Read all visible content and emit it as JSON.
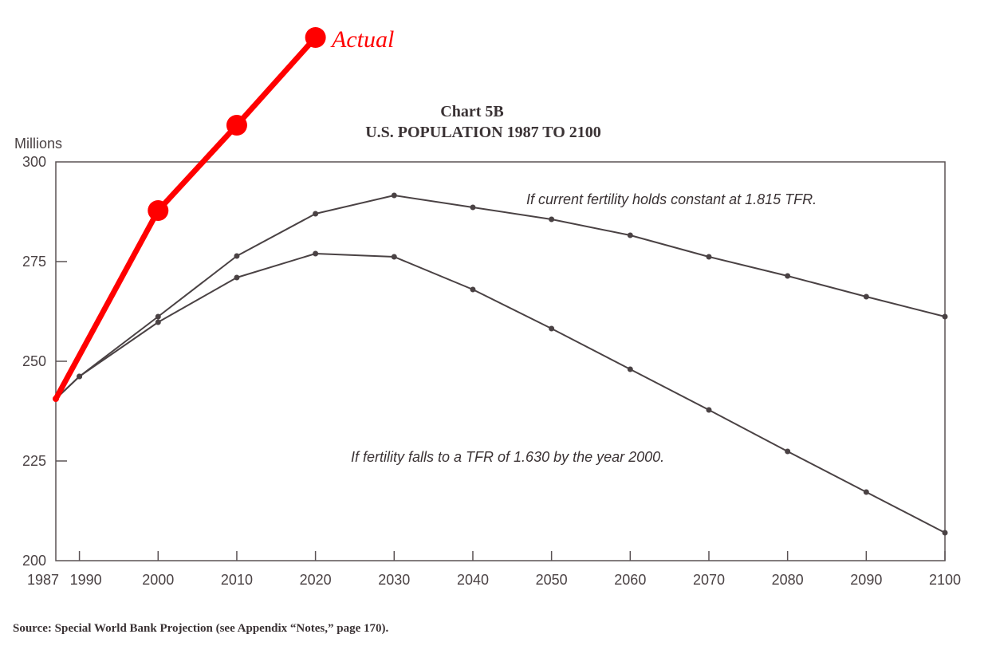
{
  "chart_data": {
    "type": "line",
    "title": "Chart 5B",
    "subtitle": "U.S. POPULATION 1987 TO 2100",
    "ylabel": "Millions",
    "xlabel": "",
    "ylim": [
      200,
      300
    ],
    "xlim": [
      1987,
      2100
    ],
    "y_ticks": [
      200,
      225,
      250,
      275,
      300
    ],
    "x_ticks": [
      1987,
      1990,
      2000,
      2010,
      2020,
      2030,
      2040,
      2050,
      2060,
      2070,
      2080,
      2090,
      2100
    ],
    "x_tick_labels": [
      "1987",
      "1990",
      "2000",
      "2010",
      "2020",
      "2030",
      "2040",
      "2050",
      "2060",
      "2070",
      "2080",
      "2090",
      "2100"
    ],
    "y_tick_labels": [
      "200",
      "225",
      "250",
      "275",
      "300"
    ],
    "grid": false,
    "series": [
      {
        "name": "If current fertility holds constant at 1.815 TFR.",
        "color": "#4a4244",
        "x": [
          1987,
          1990,
          2000,
          2010,
          2020,
          2030,
          2040,
          2050,
          2060,
          2070,
          2080,
          2090,
          2100
        ],
        "values": [
          240.6,
          246.2,
          261.2,
          276.4,
          287.0,
          291.6,
          288.6,
          285.6,
          281.6,
          276.2,
          271.4,
          266.2,
          261.2
        ]
      },
      {
        "name": "If fertility falls to a TFR of 1.630 by the year 2000.",
        "color": "#4a4244",
        "x": [
          1987,
          1990,
          2000,
          2010,
          2020,
          2030,
          2040,
          2050,
          2060,
          2070,
          2080,
          2090,
          2100
        ],
        "values": [
          240.6,
          246.2,
          259.8,
          271.0,
          277.0,
          276.2,
          268.0,
          258.2,
          248.0,
          237.8,
          227.4,
          217.2,
          207.0
        ]
      },
      {
        "name": "Actual",
        "color": "#ff0000",
        "x": [
          1987,
          2000,
          2010,
          2020
        ],
        "values": [
          240.6,
          287.8,
          309.2,
          331.2
        ]
      }
    ],
    "source": "Source: Special World Bank Projection (see Appendix “Notes,” page 170)."
  }
}
